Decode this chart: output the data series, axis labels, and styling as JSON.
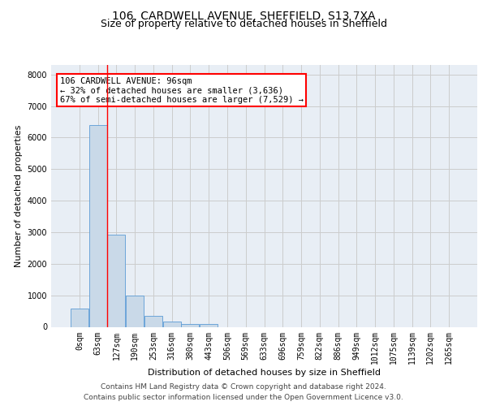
{
  "title_line1": "106, CARDWELL AVENUE, SHEFFIELD, S13 7XA",
  "title_line2": "Size of property relative to detached houses in Sheffield",
  "xlabel": "Distribution of detached houses by size in Sheffield",
  "ylabel": "Number of detached properties",
  "bar_labels": [
    "0sqm",
    "63sqm",
    "127sqm",
    "190sqm",
    "253sqm",
    "316sqm",
    "380sqm",
    "443sqm",
    "506sqm",
    "569sqm",
    "633sqm",
    "696sqm",
    "759sqm",
    "822sqm",
    "886sqm",
    "949sqm",
    "1012sqm",
    "1075sqm",
    "1139sqm",
    "1202sqm",
    "1265sqm"
  ],
  "bar_values": [
    570,
    6400,
    2920,
    990,
    360,
    165,
    100,
    85,
    0,
    0,
    0,
    0,
    0,
    0,
    0,
    0,
    0,
    0,
    0,
    0,
    0
  ],
  "bar_color": "#c9d9e8",
  "bar_edge_color": "#5b9bd5",
  "property_line_x": 1.5,
  "annotation_text": "106 CARDWELL AVENUE: 96sqm\n← 32% of detached houses are smaller (3,636)\n67% of semi-detached houses are larger (7,529) →",
  "annotation_box_color": "white",
  "annotation_box_edge": "red",
  "vline_color": "red",
  "ylim": [
    0,
    8300
  ],
  "yticks": [
    0,
    1000,
    2000,
    3000,
    4000,
    5000,
    6000,
    7000,
    8000
  ],
  "grid_color": "#cccccc",
  "bg_color": "#e8eef5",
  "footer_line1": "Contains HM Land Registry data © Crown copyright and database right 2024.",
  "footer_line2": "Contains public sector information licensed under the Open Government Licence v3.0.",
  "title_fontsize": 10,
  "subtitle_fontsize": 9,
  "axis_label_fontsize": 8,
  "tick_fontsize": 7,
  "annotation_fontsize": 7.5,
  "footer_fontsize": 6.5
}
